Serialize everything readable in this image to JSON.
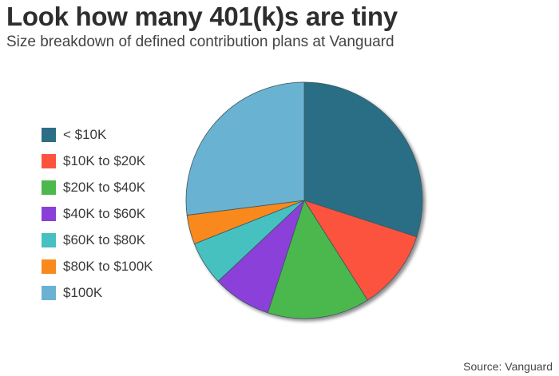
{
  "title": "Look how many 401(k)s are tiny",
  "subtitle": "Size breakdown of defined contribution plans at Vanguard",
  "source": "Source: Vanguard",
  "chart_data": {
    "type": "pie",
    "title": "Look how many 401(k)s are tiny",
    "subtitle": "Size breakdown of defined contribution plans at Vanguard",
    "legend_position": "left",
    "slices": [
      {
        "label": "< $10K",
        "value": 30,
        "color": "#2b6e85"
      },
      {
        "label": "$10K to $20K",
        "value": 11,
        "color": "#fb533e"
      },
      {
        "label": "$20K to $40K",
        "value": 14,
        "color": "#4cb84e"
      },
      {
        "label": "$40K to $60K",
        "value": 8,
        "color": "#8a3fd9"
      },
      {
        "label": "$60K to $80K",
        "value": 6,
        "color": "#46c0c0"
      },
      {
        "label": "$80K to $100K",
        "value": 4,
        "color": "#f9891c"
      },
      {
        "label": "$100K",
        "value": 27,
        "color": "#6bb2d2"
      }
    ]
  }
}
